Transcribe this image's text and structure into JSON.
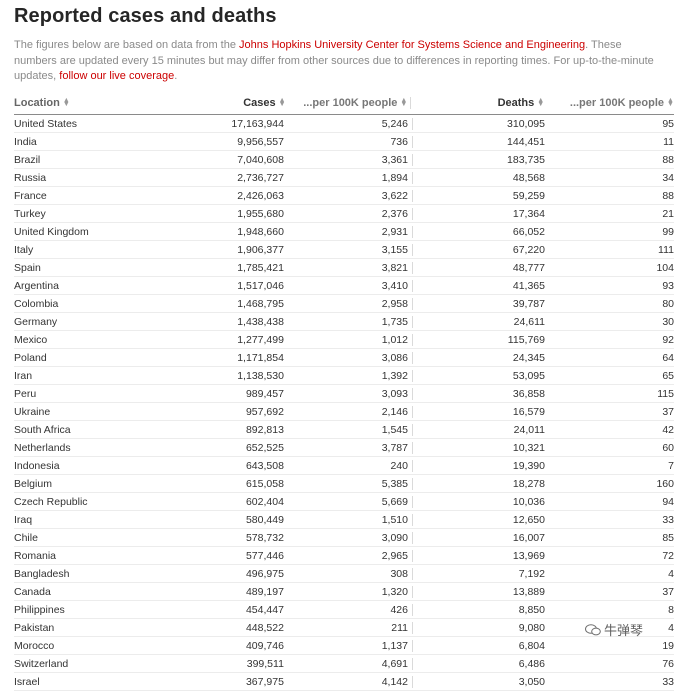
{
  "title": "Reported cases and deaths",
  "intro": {
    "text_before": "The figures below are based on data from the ",
    "link1": "Johns Hopkins University Center for Systems Science and Engineering",
    "text_middle": ". These numbers are updated every 15 minutes but may differ from other sources due to differences in reporting times. For up-to-the-minute updates, ",
    "link2": "follow our live coverage",
    "text_after": "."
  },
  "colors": {
    "link": "#cc0000",
    "text": "#262626",
    "muted": "#8a8a8a"
  },
  "headers": {
    "location": "Location",
    "cases": "Cases",
    "cases_per100k": "...per 100K people",
    "deaths": "Deaths",
    "deaths_per100k": "...per 100K people"
  },
  "rows": [
    {
      "location": "United States",
      "cases": "17,163,944",
      "cases_per": "5,246",
      "deaths": "310,095",
      "deaths_per": "95"
    },
    {
      "location": "India",
      "cases": "9,956,557",
      "cases_per": "736",
      "deaths": "144,451",
      "deaths_per": "11"
    },
    {
      "location": "Brazil",
      "cases": "7,040,608",
      "cases_per": "3,361",
      "deaths": "183,735",
      "deaths_per": "88"
    },
    {
      "location": "Russia",
      "cases": "2,736,727",
      "cases_per": "1,894",
      "deaths": "48,568",
      "deaths_per": "34"
    },
    {
      "location": "France",
      "cases": "2,426,063",
      "cases_per": "3,622",
      "deaths": "59,259",
      "deaths_per": "88"
    },
    {
      "location": "Turkey",
      "cases": "1,955,680",
      "cases_per": "2,376",
      "deaths": "17,364",
      "deaths_per": "21"
    },
    {
      "location": "United Kingdom",
      "cases": "1,948,660",
      "cases_per": "2,931",
      "deaths": "66,052",
      "deaths_per": "99"
    },
    {
      "location": "Italy",
      "cases": "1,906,377",
      "cases_per": "3,155",
      "deaths": "67,220",
      "deaths_per": "111"
    },
    {
      "location": "Spain",
      "cases": "1,785,421",
      "cases_per": "3,821",
      "deaths": "48,777",
      "deaths_per": "104"
    },
    {
      "location": "Argentina",
      "cases": "1,517,046",
      "cases_per": "3,410",
      "deaths": "41,365",
      "deaths_per": "93"
    },
    {
      "location": "Colombia",
      "cases": "1,468,795",
      "cases_per": "2,958",
      "deaths": "39,787",
      "deaths_per": "80"
    },
    {
      "location": "Germany",
      "cases": "1,438,438",
      "cases_per": "1,735",
      "deaths": "24,611",
      "deaths_per": "30"
    },
    {
      "location": "Mexico",
      "cases": "1,277,499",
      "cases_per": "1,012",
      "deaths": "115,769",
      "deaths_per": "92"
    },
    {
      "location": "Poland",
      "cases": "1,171,854",
      "cases_per": "3,086",
      "deaths": "24,345",
      "deaths_per": "64"
    },
    {
      "location": "Iran",
      "cases": "1,138,530",
      "cases_per": "1,392",
      "deaths": "53,095",
      "deaths_per": "65"
    },
    {
      "location": "Peru",
      "cases": "989,457",
      "cases_per": "3,093",
      "deaths": "36,858",
      "deaths_per": "115"
    },
    {
      "location": "Ukraine",
      "cases": "957,692",
      "cases_per": "2,146",
      "deaths": "16,579",
      "deaths_per": "37"
    },
    {
      "location": "South Africa",
      "cases": "892,813",
      "cases_per": "1,545",
      "deaths": "24,011",
      "deaths_per": "42"
    },
    {
      "location": "Netherlands",
      "cases": "652,525",
      "cases_per": "3,787",
      "deaths": "10,321",
      "deaths_per": "60"
    },
    {
      "location": "Indonesia",
      "cases": "643,508",
      "cases_per": "240",
      "deaths": "19,390",
      "deaths_per": "7"
    },
    {
      "location": "Belgium",
      "cases": "615,058",
      "cases_per": "5,385",
      "deaths": "18,278",
      "deaths_per": "160"
    },
    {
      "location": "Czech Republic",
      "cases": "602,404",
      "cases_per": "5,669",
      "deaths": "10,036",
      "deaths_per": "94"
    },
    {
      "location": "Iraq",
      "cases": "580,449",
      "cases_per": "1,510",
      "deaths": "12,650",
      "deaths_per": "33"
    },
    {
      "location": "Chile",
      "cases": "578,732",
      "cases_per": "3,090",
      "deaths": "16,007",
      "deaths_per": "85"
    },
    {
      "location": "Romania",
      "cases": "577,446",
      "cases_per": "2,965",
      "deaths": "13,969",
      "deaths_per": "72"
    },
    {
      "location": "Bangladesh",
      "cases": "496,975",
      "cases_per": "308",
      "deaths": "7,192",
      "deaths_per": "4"
    },
    {
      "location": "Canada",
      "cases": "489,197",
      "cases_per": "1,320",
      "deaths": "13,889",
      "deaths_per": "37"
    },
    {
      "location": "Philippines",
      "cases": "454,447",
      "cases_per": "426",
      "deaths": "8,850",
      "deaths_per": "8"
    },
    {
      "location": "Pakistan",
      "cases": "448,522",
      "cases_per": "211",
      "deaths": "9,080",
      "deaths_per": "4"
    },
    {
      "location": "Morocco",
      "cases": "409,746",
      "cases_per": "1,137",
      "deaths": "6,804",
      "deaths_per": "19"
    },
    {
      "location": "Switzerland",
      "cases": "399,511",
      "cases_per": "4,691",
      "deaths": "6,486",
      "deaths_per": "76"
    },
    {
      "location": "Israel",
      "cases": "367,975",
      "cases_per": "4,142",
      "deaths": "3,050",
      "deaths_per": "33"
    }
  ],
  "watermark": {
    "text": "牛弹琴",
    "icon": "wechat-bubble-icon"
  }
}
